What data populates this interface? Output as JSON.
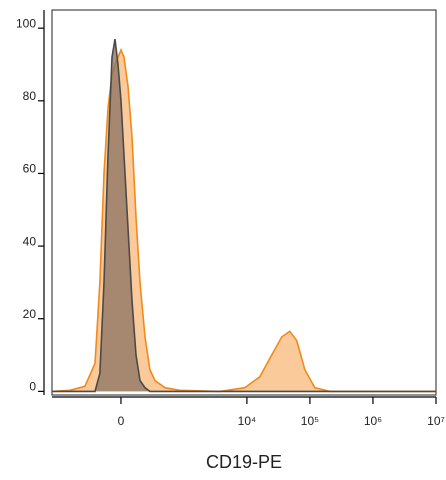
{
  "chart_data": {
    "type": "area",
    "x_label": "CD19-PE",
    "xscale": "biexponential",
    "x": [
      -1240,
      -631,
      -348,
      -220,
      -170,
      -133,
      -99,
      -67,
      -44,
      -22,
      0,
      22,
      52,
      83,
      116,
      151,
      200,
      254,
      318,
      480,
      855,
      3720,
      9290,
      16000,
      24700,
      35800,
      47800,
      61700,
      82800,
      119400,
      207000,
      10000000
    ],
    "series": [
      {
        "color": "#f08a1c",
        "fill": "#fbc48f",
        "values": [
          0,
          0.3,
          1.4,
          7.7,
          30,
          60,
          78,
          87,
          90,
          92,
          94,
          92,
          84,
          70,
          48,
          30,
          15,
          6,
          3,
          1,
          0.3,
          0,
          1,
          4,
          10,
          15,
          16.5,
          14,
          6,
          1,
          0,
          0
        ]
      },
      {
        "color": "#4a4a4a",
        "fill": "#8a7060",
        "values": [
          0,
          0,
          0,
          0,
          5,
          30,
          65,
          92,
          97,
          90,
          80,
          65,
          45,
          25,
          10,
          3,
          1,
          0,
          0,
          0,
          0,
          0,
          0,
          0,
          0,
          0,
          0,
          0,
          0,
          0,
          0,
          0
        ]
      }
    ],
    "xlim": [
      -1240,
      10000000
    ],
    "xticks": [
      0,
      {
        "value": 10000,
        "label": "10⁴"
      },
      {
        "value": 100000,
        "label": "10⁵"
      },
      {
        "value": 1000000,
        "label": "10⁶"
      },
      {
        "value": 10000000,
        "label": "10⁷"
      }
    ],
    "ylim": [
      -1,
      105
    ],
    "yticks": [
      0,
      20,
      40,
      60,
      80,
      100
    ]
  }
}
